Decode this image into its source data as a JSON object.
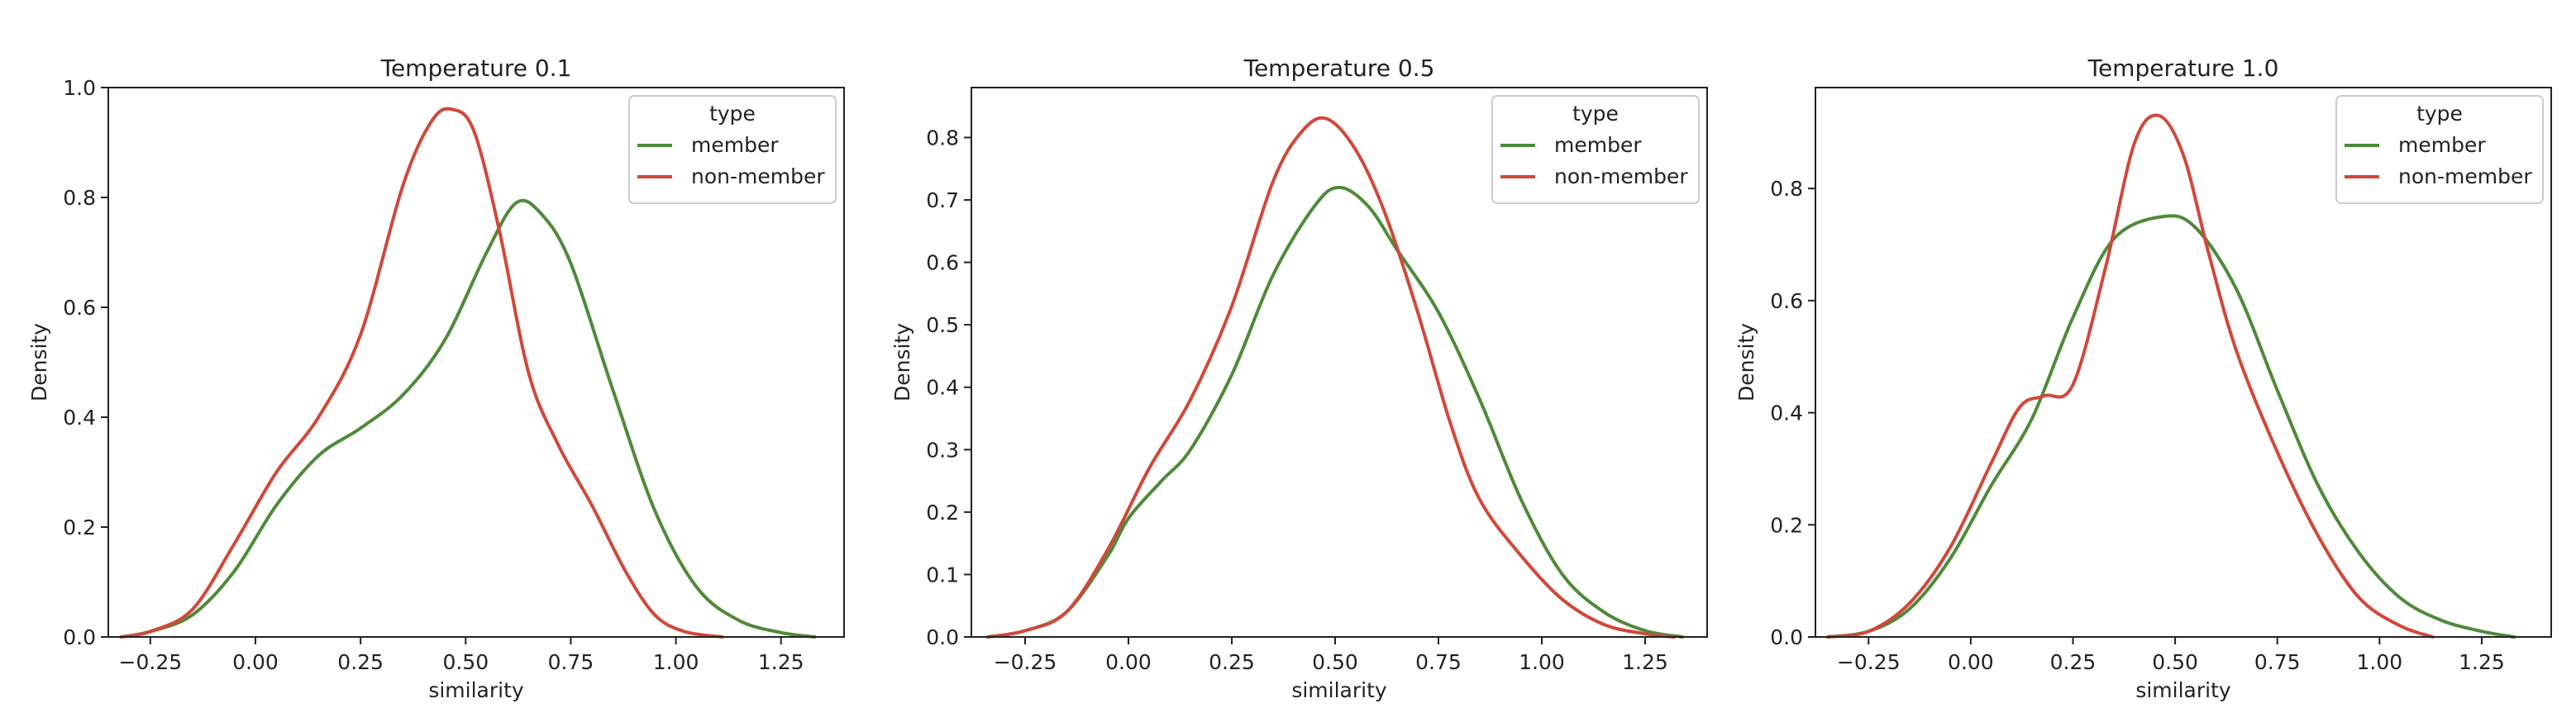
{
  "chart_data": [
    {
      "type": "line",
      "title": "Temperature 0.1",
      "xlabel": "similarity",
      "ylabel": "Density",
      "xlim": [
        -0.35,
        1.4
      ],
      "ylim": [
        0,
        1.0
      ],
      "xticks": [
        "−0.25",
        "0.00",
        "0.25",
        "0.50",
        "0.75",
        "1.00",
        "1.25"
      ],
      "yticks": [
        "0.0",
        "0.2",
        "0.4",
        "0.6",
        "0.8",
        "1.0"
      ],
      "grid": false,
      "legend": {
        "title": "type",
        "placement": "top-right"
      },
      "series": [
        {
          "name": "member",
          "color": "#4e8a3a",
          "x": [
            -0.32,
            -0.25,
            -0.15,
            -0.05,
            0.05,
            0.15,
            0.25,
            0.35,
            0.45,
            0.55,
            0.62,
            0.68,
            0.75,
            0.85,
            0.95,
            1.05,
            1.15,
            1.25,
            1.33
          ],
          "y": [
            0.0,
            0.01,
            0.04,
            0.12,
            0.24,
            0.33,
            0.38,
            0.44,
            0.54,
            0.7,
            0.79,
            0.77,
            0.68,
            0.45,
            0.23,
            0.09,
            0.03,
            0.008,
            0.0
          ]
        },
        {
          "name": "non-member",
          "color": "#d1483a",
          "x": [
            -0.32,
            -0.25,
            -0.15,
            -0.05,
            0.05,
            0.15,
            0.25,
            0.35,
            0.42,
            0.47,
            0.52,
            0.58,
            0.65,
            0.72,
            0.8,
            0.88,
            0.95,
            1.02,
            1.11
          ],
          "y": [
            0.0,
            0.01,
            0.05,
            0.17,
            0.3,
            0.4,
            0.55,
            0.82,
            0.94,
            0.96,
            0.92,
            0.74,
            0.48,
            0.35,
            0.24,
            0.12,
            0.04,
            0.01,
            0.0
          ]
        }
      ]
    },
    {
      "type": "line",
      "title": "Temperature 0.5",
      "xlabel": "similarity",
      "ylabel": "Density",
      "xlim": [
        -0.38,
        1.4
      ],
      "ylim": [
        0,
        0.88
      ],
      "xticks": [
        "−0.25",
        "0.00",
        "0.25",
        "0.50",
        "0.75",
        "1.00",
        "1.25"
      ],
      "yticks": [
        "0.0",
        "0.1",
        "0.2",
        "0.3",
        "0.4",
        "0.5",
        "0.6",
        "0.7",
        "0.8"
      ],
      "grid": false,
      "legend": {
        "title": "type",
        "placement": "top-right"
      },
      "series": [
        {
          "name": "member",
          "color": "#4e8a3a",
          "x": [
            -0.34,
            -0.25,
            -0.15,
            -0.05,
            0.0,
            0.08,
            0.15,
            0.25,
            0.35,
            0.45,
            0.51,
            0.58,
            0.65,
            0.75,
            0.85,
            0.95,
            1.05,
            1.15,
            1.25,
            1.34
          ],
          "y": [
            0.0,
            0.01,
            0.04,
            0.13,
            0.19,
            0.25,
            0.3,
            0.42,
            0.58,
            0.69,
            0.72,
            0.69,
            0.62,
            0.52,
            0.38,
            0.22,
            0.1,
            0.04,
            0.01,
            0.0
          ]
        },
        {
          "name": "non-member",
          "color": "#d1483a",
          "x": [
            -0.34,
            -0.25,
            -0.15,
            -0.05,
            0.05,
            0.15,
            0.25,
            0.35,
            0.42,
            0.48,
            0.55,
            0.62,
            0.7,
            0.78,
            0.85,
            0.95,
            1.05,
            1.15,
            1.25,
            1.32
          ],
          "y": [
            0.0,
            0.01,
            0.04,
            0.14,
            0.27,
            0.38,
            0.53,
            0.73,
            0.81,
            0.83,
            0.78,
            0.68,
            0.52,
            0.34,
            0.22,
            0.13,
            0.06,
            0.02,
            0.005,
            0.0
          ]
        }
      ]
    },
    {
      "type": "line",
      "title": "Temperature 1.0",
      "xlabel": "similarity",
      "ylabel": "Density",
      "xlim": [
        -0.38,
        1.42
      ],
      "ylim": [
        0,
        0.98
      ],
      "xticks": [
        "−0.25",
        "0.00",
        "0.25",
        "0.50",
        "0.75",
        "1.00",
        "1.25"
      ],
      "yticks": [
        "0.0",
        "0.2",
        "0.4",
        "0.6",
        "0.8"
      ],
      "grid": false,
      "legend": {
        "title": "type",
        "placement": "top-right"
      },
      "series": [
        {
          "name": "member",
          "color": "#4e8a3a",
          "x": [
            -0.35,
            -0.25,
            -0.15,
            -0.05,
            0.05,
            0.15,
            0.25,
            0.35,
            0.47,
            0.55,
            0.65,
            0.75,
            0.85,
            0.95,
            1.05,
            1.15,
            1.25,
            1.33
          ],
          "y": [
            0.0,
            0.01,
            0.05,
            0.14,
            0.27,
            0.39,
            0.57,
            0.71,
            0.75,
            0.73,
            0.62,
            0.44,
            0.27,
            0.15,
            0.07,
            0.03,
            0.01,
            0.0
          ]
        },
        {
          "name": "non-member",
          "color": "#d1483a",
          "x": [
            -0.35,
            -0.25,
            -0.15,
            -0.05,
            0.05,
            0.12,
            0.18,
            0.25,
            0.33,
            0.4,
            0.46,
            0.52,
            0.58,
            0.65,
            0.75,
            0.85,
            0.95,
            1.05,
            1.13
          ],
          "y": [
            0.0,
            0.01,
            0.06,
            0.16,
            0.31,
            0.41,
            0.43,
            0.45,
            0.66,
            0.88,
            0.93,
            0.86,
            0.69,
            0.51,
            0.33,
            0.18,
            0.07,
            0.02,
            0.0
          ]
        }
      ]
    }
  ]
}
